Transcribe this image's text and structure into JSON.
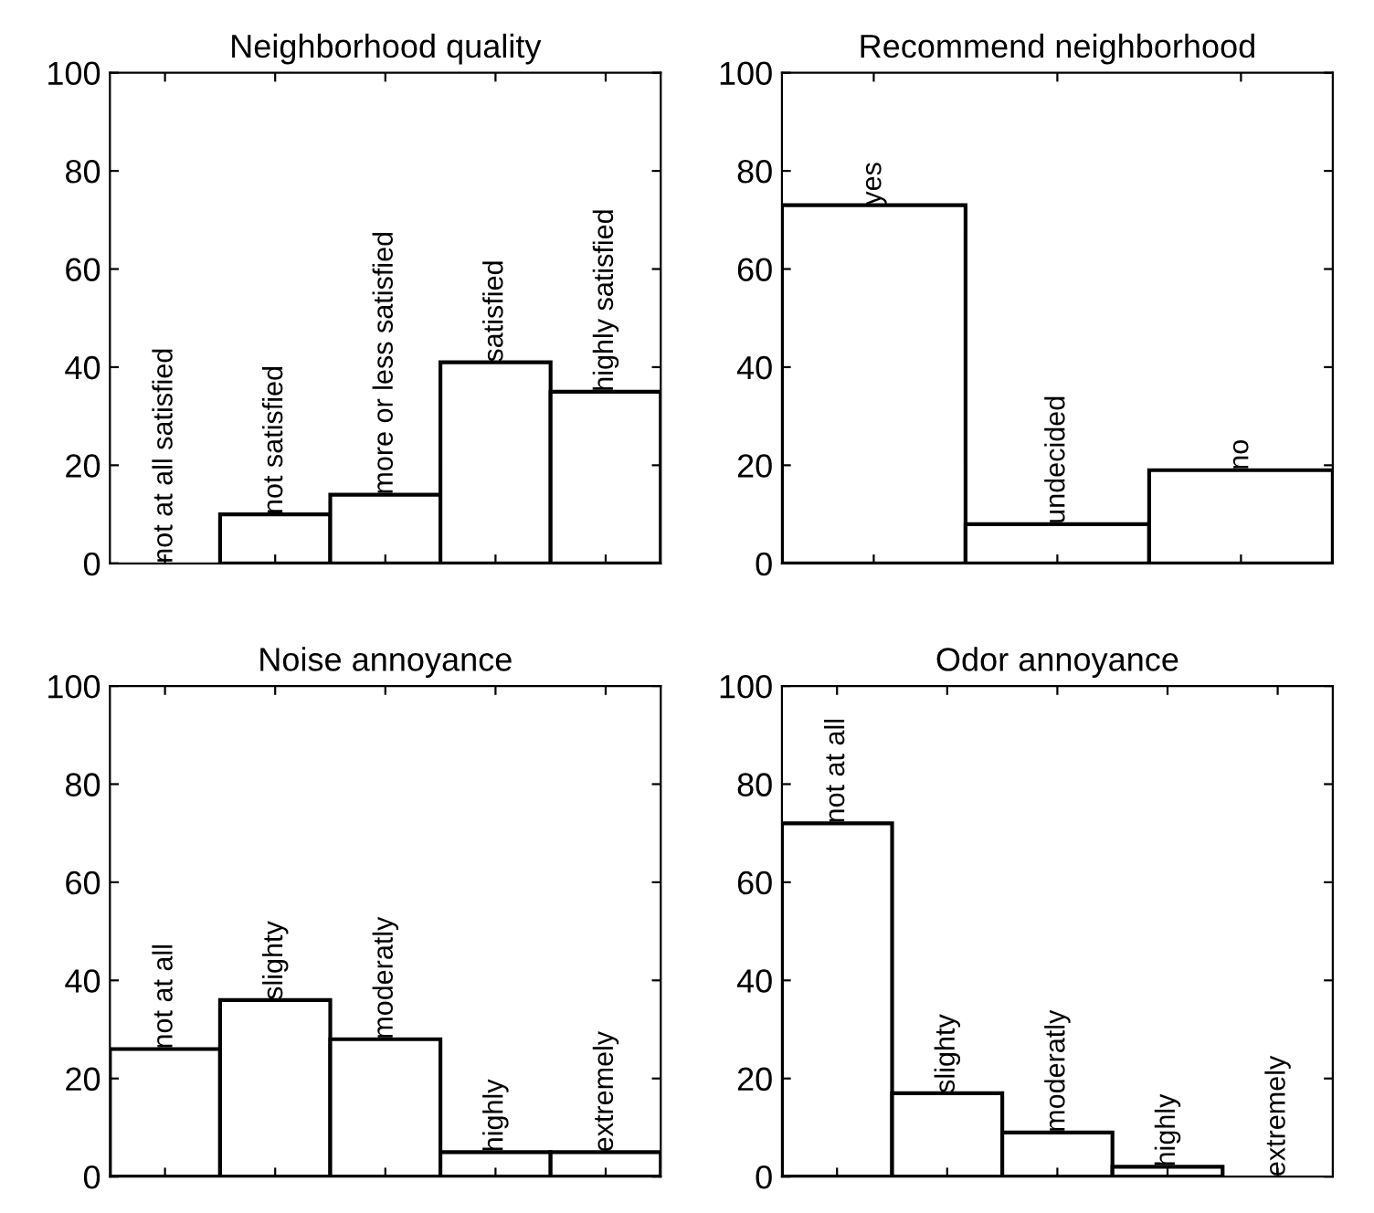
{
  "chart_data": [
    {
      "type": "bar",
      "title": "Neighborhood quality",
      "categories": [
        "not at all satisfied",
        "not satisfied",
        "more or less satisfied",
        "satisfied",
        "highly satisfied"
      ],
      "values": [
        0,
        10,
        14,
        41,
        35
      ],
      "color": "#ffffff",
      "ylim": [
        0,
        100
      ],
      "yticks": [
        0,
        20,
        40,
        60,
        80,
        100
      ],
      "tick_labels": "y",
      "grid": false
    },
    {
      "type": "bar",
      "title": "Recommend neighborhood",
      "categories": [
        "yes",
        "undecided",
        "no"
      ],
      "values": [
        73,
        8,
        19
      ],
      "color": "#ffffff",
      "ylim": [
        0,
        100
      ],
      "yticks": [
        0,
        20,
        40,
        60,
        80,
        100
      ],
      "tick_labels": "y",
      "grid": false
    },
    {
      "type": "bar",
      "title": "Noise annoyance",
      "categories": [
        "not at all",
        "slighty",
        "moderatly",
        "highly",
        "extremely"
      ],
      "values": [
        26,
        36,
        28,
        5,
        5
      ],
      "color": "#ffffff",
      "ylim": [
        0,
        100
      ],
      "yticks": [
        0,
        20,
        40,
        60,
        80,
        100
      ],
      "tick_labels": "y",
      "grid": false
    },
    {
      "type": "bar",
      "title": "Odor annoyance",
      "categories": [
        "not at all",
        "slighty",
        "moderatly",
        "highly",
        "extremely"
      ],
      "values": [
        72,
        17,
        9,
        2,
        0
      ],
      "color": "#ffffff",
      "ylim": [
        0,
        100
      ],
      "yticks": [
        0,
        20,
        40,
        60,
        80,
        100
      ],
      "tick_labels": "y",
      "grid": false
    }
  ]
}
